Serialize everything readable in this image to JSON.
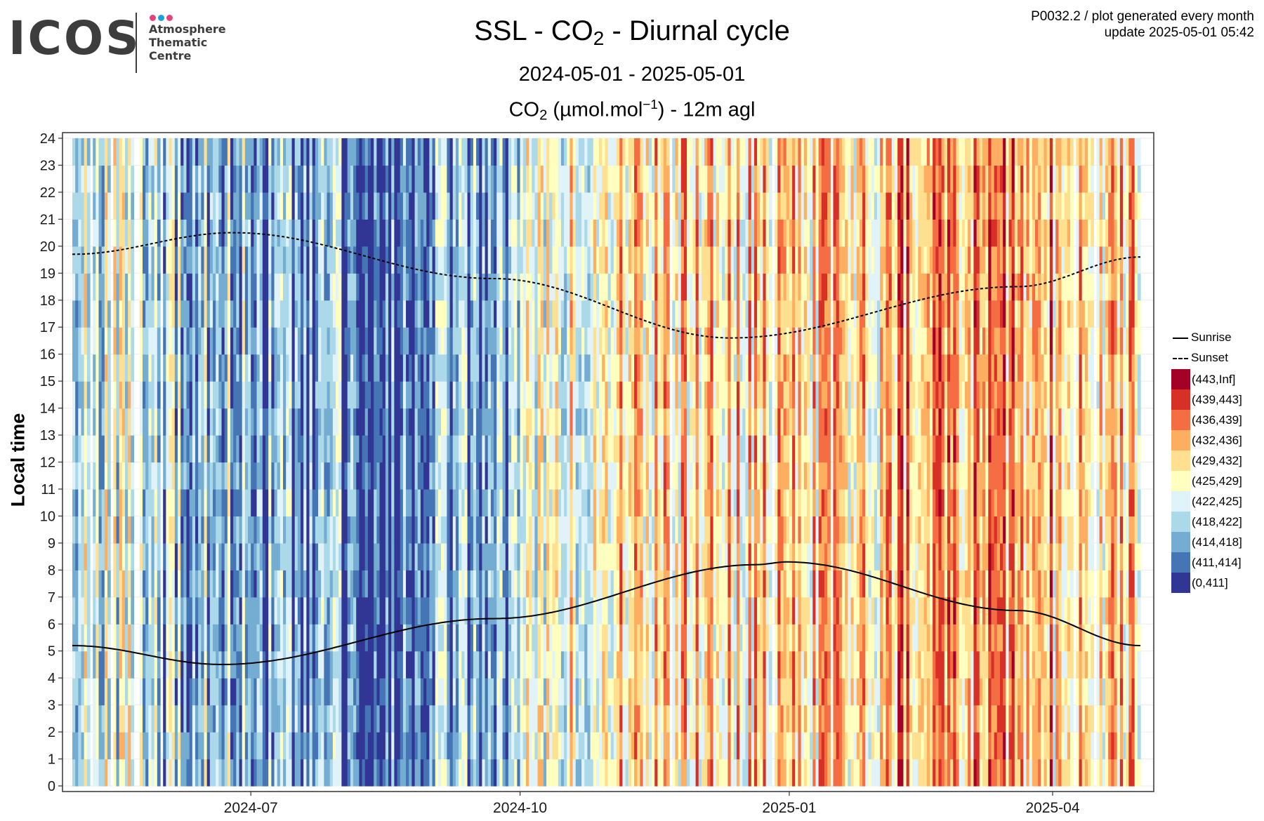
{
  "logo": {
    "wordmark": "ICOS",
    "line1": "Atmosphere",
    "line2": "Thematic",
    "line3": "Centre",
    "dot_colors": [
      "#e8407a",
      "#1a9fe0",
      "#e8407a"
    ]
  },
  "header": {
    "info_line1": "P0032.2 / plot generated every month",
    "info_line2": "update  2025-05-01 05:42",
    "title_pre": "SSL - CO",
    "title_sub": "2",
    "title_post": " - Diurnal cycle",
    "date_range": "2024-05-01 - 2025-05-01",
    "unit_pre": "CO",
    "unit_sub": "2",
    "unit_mid": " (µmol.mol",
    "unit_sup": "−1",
    "unit_post": ") - 12m agl"
  },
  "chart_data": {
    "type": "heatmap",
    "xlabel": "",
    "ylabel": "Local time",
    "x_start": "2024-05-01",
    "x_end": "2025-05-01",
    "x_ticks": [
      "2024-07",
      "2024-10",
      "2025-01",
      "2025-04"
    ],
    "x_tick_dates": [
      "2024-07-01",
      "2024-10-01",
      "2025-01-01",
      "2025-04-01"
    ],
    "y_ticks": [
      "0",
      "1",
      "2",
      "3",
      "4",
      "5",
      "6",
      "7",
      "8",
      "9",
      "10",
      "11",
      "12",
      "13",
      "14",
      "15",
      "16",
      "17",
      "18",
      "19",
      "20",
      "21",
      "22",
      "23",
      "24"
    ],
    "ylim": [
      0,
      24
    ],
    "grid": true,
    "legend_position": "right",
    "bins": [
      {
        "label": "(443,Inf]",
        "color": "#a50026"
      },
      {
        "label": "(439,443]",
        "color": "#d73027"
      },
      {
        "label": "(436,439]",
        "color": "#f46d43"
      },
      {
        "label": "(432,436]",
        "color": "#fdae61"
      },
      {
        "label": "(429,432]",
        "color": "#fee090"
      },
      {
        "label": "(425,429]",
        "color": "#ffffbf"
      },
      {
        "label": "(422,425]",
        "color": "#e0f3f8"
      },
      {
        "label": "(418,422]",
        "color": "#abd9e9"
      },
      {
        "label": "(414,418]",
        "color": "#74add1"
      },
      {
        "label": "(411,414]",
        "color": "#4575b4"
      },
      {
        "label": "(0,411]",
        "color": "#313695"
      }
    ],
    "lines": [
      {
        "name": "Sunrise",
        "style": "solid",
        "dates": [
          "2024-05-01",
          "2024-06-21",
          "2024-09-22",
          "2024-12-21",
          "2024-12-31",
          "2025-03-20",
          "2025-05-01"
        ],
        "hours": [
          5.2,
          4.5,
          6.2,
          8.2,
          8.3,
          6.5,
          5.2
        ]
      },
      {
        "name": "Sunset",
        "style": "dashed",
        "dates": [
          "2024-05-01",
          "2024-06-25",
          "2024-09-22",
          "2024-12-12",
          "2025-03-20",
          "2025-05-01"
        ],
        "hours": [
          19.7,
          20.5,
          18.8,
          16.6,
          18.5,
          19.6
        ]
      }
    ],
    "monthly_mean_bin": {
      "2024-05": 6,
      "2024-06": 7,
      "2024-07": 8,
      "2024-08": 9,
      "2024-09": 8,
      "2024-10": 5,
      "2024-11": 4,
      "2024-12": 4,
      "2025-01": 4,
      "2025-02": 3,
      "2025-03": 3,
      "2025-04": 4
    }
  }
}
